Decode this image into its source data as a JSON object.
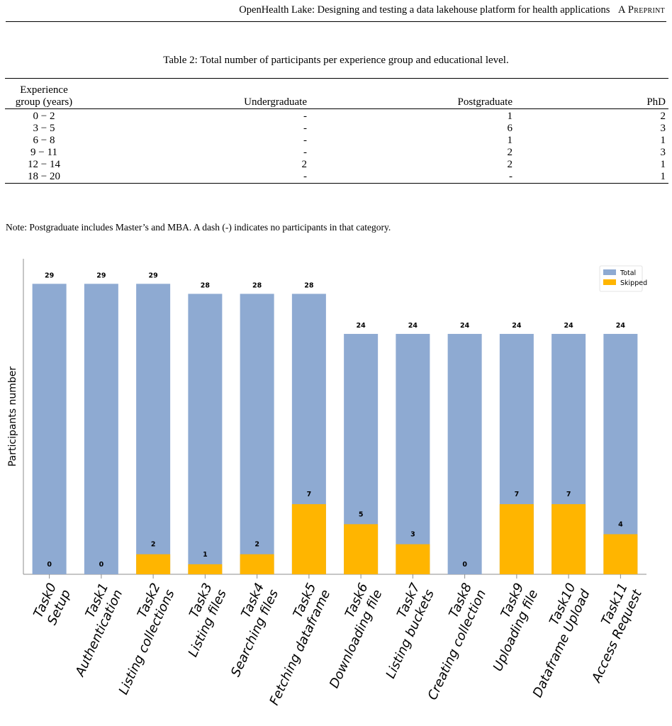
{
  "header": {
    "title": "OpenHealth Lake: Designing and testing a data lakehouse platform for health applications",
    "tag": "A Preprint"
  },
  "table": {
    "caption": "Table 2: Total number of participants per experience group and educational level.",
    "columns": {
      "experience_line1": "Experience",
      "experience_line2": "group (years)",
      "undergraduate": "Undergraduate",
      "postgraduate": "Postgraduate",
      "phd": "PhD"
    },
    "rows": [
      {
        "group": "0 − 2",
        "undergraduate": "-",
        "postgraduate": "1",
        "phd": "2"
      },
      {
        "group": "3 − 5",
        "undergraduate": "-",
        "postgraduate": "6",
        "phd": "3"
      },
      {
        "group": "6 − 8",
        "undergraduate": "-",
        "postgraduate": "1",
        "phd": "1"
      },
      {
        "group": "9 − 11",
        "undergraduate": "-",
        "postgraduate": "2",
        "phd": "3"
      },
      {
        "group": "12 − 14",
        "undergraduate": "2",
        "postgraduate": "2",
        "phd": "1"
      },
      {
        "group": "18 − 20",
        "undergraduate": "-",
        "postgraduate": "-",
        "phd": "1"
      }
    ],
    "note": "Note: Postgraduate includes Master’s and MBA. A dash (-) indicates no participants in that category."
  },
  "chart_data": {
    "type": "bar",
    "ylabel": "Participants number",
    "xlabel": "",
    "ylim": [
      0,
      31.5
    ],
    "grid": false,
    "legend_position": "top-right",
    "categories": [
      [
        "Task0",
        "Setup"
      ],
      [
        "Task1",
        "Authentication"
      ],
      [
        "Task2",
        "Listing collections"
      ],
      [
        "Task3",
        "Listing files"
      ],
      [
        "Task4",
        "Searching files"
      ],
      [
        "Task5",
        "Fetching dataframe"
      ],
      [
        "Task6",
        "Downloading file"
      ],
      [
        "Task7",
        "Listing buckets"
      ],
      [
        "Task8",
        "Creating collection"
      ],
      [
        "Task9",
        "Uploading file"
      ],
      [
        "Task10",
        "Dataframe Upload"
      ],
      [
        "Task11",
        "Access Request"
      ]
    ],
    "series": [
      {
        "name": "Total",
        "color": "#8eaad2",
        "values": [
          29,
          29,
          29,
          28,
          28,
          28,
          24,
          24,
          24,
          24,
          24,
          24
        ]
      },
      {
        "name": "Skipped",
        "color": "#ffb500",
        "values": [
          0,
          0,
          2,
          1,
          2,
          7,
          5,
          3,
          0,
          7,
          7,
          4
        ]
      }
    ]
  }
}
